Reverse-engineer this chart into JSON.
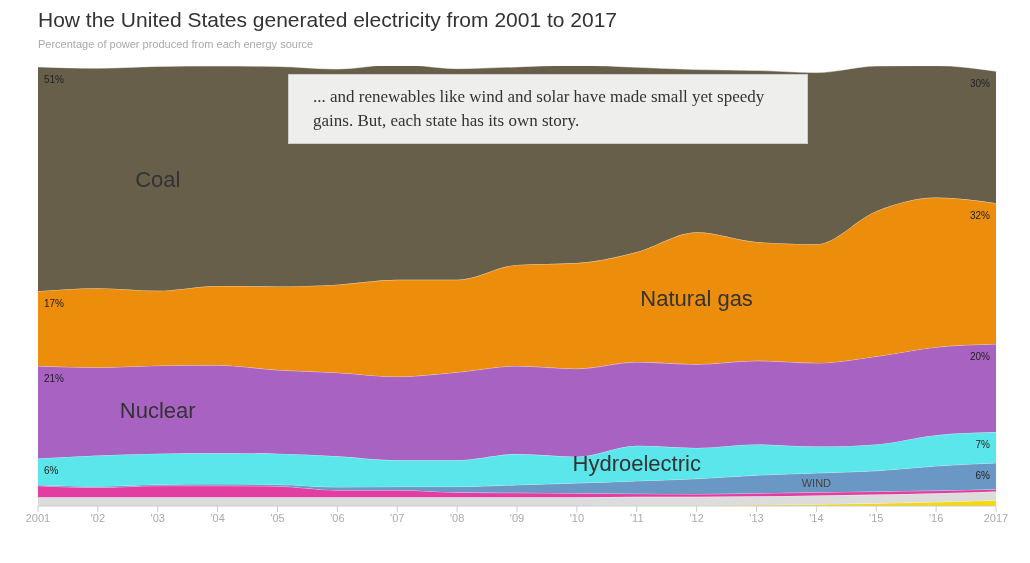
{
  "chart_data": {
    "type": "area",
    "stacked": true,
    "title": "How the United States generated electricity from 2001 to 2017",
    "subtitle": "Percentage of power produced from each energy source",
    "annotations": [
      "... and renewables like wind and solar have made small yet speedy gains. But, each state has its own story."
    ],
    "x": [
      2001,
      2002,
      2003,
      2004,
      2005,
      2006,
      2007,
      2008,
      2009,
      2010,
      2011,
      2012,
      2013,
      2014,
      2015,
      2016,
      2017
    ],
    "xlim": [
      2001,
      2017
    ],
    "xticks": [
      2001,
      {
        "value": 2002,
        "label": "'02"
      },
      {
        "value": 2003,
        "label": "'03"
      },
      {
        "value": 2004,
        "label": "'04"
      },
      {
        "value": 2005,
        "label": "'05"
      },
      {
        "value": 2006,
        "label": "'06"
      },
      {
        "value": 2007,
        "label": "'07"
      },
      {
        "value": 2008,
        "label": "'08"
      },
      {
        "value": 2009,
        "label": "'09"
      },
      {
        "value": 2010,
        "label": "'10"
      },
      {
        "value": 2011,
        "label": "'11"
      },
      {
        "value": 2012,
        "label": "'12"
      },
      {
        "value": 2013,
        "label": "'13"
      },
      {
        "value": 2014,
        "label": "'14"
      },
      {
        "value": 2015,
        "label": "'15"
      },
      {
        "value": 2016,
        "label": "'16"
      },
      2017
    ],
    "ylim": [
      0,
      100
    ],
    "tick_labels": "x",
    "legend": false,
    "grid": false,
    "series": [
      {
        "color": "#f5d90a",
        "values": [
          0,
          0,
          0,
          0,
          0,
          0,
          0,
          0,
          0,
          0,
          0.1,
          0.1,
          0.2,
          0.4,
          0.6,
          0.9,
          1.3
        ]
      },
      {
        "color": "#dcdcdc",
        "values": [
          2,
          2,
          2,
          2,
          2,
          2,
          2,
          2,
          2,
          2,
          2,
          2,
          2,
          2,
          2,
          2,
          2
        ]
      },
      {
        "color": "#e23ea2",
        "values": [
          2.6,
          2.2,
          2.6,
          2.6,
          2.5,
          1.6,
          1.6,
          1.1,
          1,
          0.9,
          0.7,
          0.6,
          0.7,
          0.7,
          0.7,
          0.6,
          0.5
        ]
      },
      {
        "name": "WIND",
        "color": "#6a97c3",
        "values": [
          0.2,
          0.3,
          0.3,
          0.4,
          0.4,
          0.7,
          0.8,
          1.3,
          1.8,
          2.3,
          2.9,
          3.5,
          4.1,
          4.4,
          4.7,
          5.6,
          6
        ],
        "value_labels": [
          null,
          null,
          null,
          null,
          null,
          null,
          null,
          null,
          null,
          null,
          null,
          null,
          null,
          null,
          null,
          null,
          "6%"
        ]
      },
      {
        "name": "Hydroelectric",
        "color": "#5ae6ea",
        "values": [
          6,
          7,
          7,
          7,
          7,
          7,
          6,
          6,
          7,
          6,
          8,
          7,
          7,
          6,
          6,
          7,
          7
        ],
        "value_labels": [
          "6%",
          null,
          null,
          null,
          null,
          null,
          null,
          null,
          null,
          null,
          null,
          null,
          null,
          null,
          null,
          null,
          "7%"
        ]
      },
      {
        "name": "Nuclear",
        "color": "#a862c2",
        "values": [
          21,
          20,
          20,
          20,
          19,
          19,
          19,
          20,
          20,
          20,
          19,
          19,
          19,
          19,
          20,
          20,
          20
        ],
        "value_labels": [
          "21%",
          null,
          null,
          null,
          null,
          null,
          null,
          null,
          null,
          null,
          null,
          null,
          null,
          null,
          null,
          null,
          "20%"
        ]
      },
      {
        "name": "Natural gas",
        "color": "#ec8e0c",
        "values": [
          17,
          18,
          17,
          18,
          19,
          20,
          22,
          21,
          23,
          24,
          25,
          30,
          27,
          27,
          33,
          34,
          32
        ],
        "value_labels": [
          "17%",
          null,
          null,
          null,
          null,
          null,
          null,
          null,
          null,
          null,
          null,
          null,
          null,
          null,
          null,
          null,
          "32%"
        ]
      },
      {
        "name": "Coal",
        "color": "#675f4a",
        "values": [
          51,
          50,
          51,
          50,
          50,
          49,
          49,
          48,
          45,
          45,
          42,
          37,
          39,
          39,
          33,
          30,
          30
        ],
        "value_labels": [
          "51%",
          null,
          null,
          null,
          null,
          null,
          null,
          null,
          null,
          null,
          null,
          null,
          null,
          null,
          null,
          null,
          "30%"
        ]
      }
    ]
  }
}
